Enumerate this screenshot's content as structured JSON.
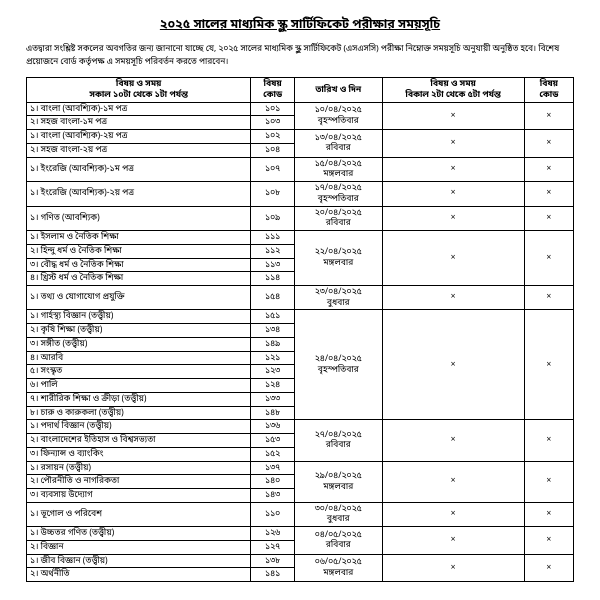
{
  "title": "২০২৫ সালের মাধ্যমিক স্কুল সার্টিফিকেট পরীক্ষার সময়সূচি",
  "intro": "এতদ্বারা সংশ্লিষ্ট সকলের অবগতির জন্য জানানো যাচ্ছে যে, ২০২৫ সালের মাধ্যমিক স্কুল সার্টিফিকেট (এসএসসি) পরীক্ষা নিম্নোক্ত সময়সূচি অনুযায়ী অনুষ্ঠিত হবে। বিশেষ প্রয়োজনে বোর্ড কর্তৃপক্ষ এ সময়সূচি পরিবর্তন করতে পারবেন।",
  "headers": {
    "subject_time": "বিষয় ও সময়",
    "morning": "সকাল ১০টা থেকে ১টা পর্যন্ত",
    "code": "বিষয়\nকোড",
    "date": "তারিখ ও দিন",
    "subject_time2": "বিষয় ও সময়",
    "afternoon": "বিকাল ২টা থেকে ৫টা পর্যন্ত",
    "code2": "বিষয়\nকোড"
  },
  "rows": [
    {
      "subs": [
        "১। বাংলা (আবশ্যিক)-১ম পত্র",
        "২। সহজ বাংলা-১ম পত্র"
      ],
      "codes": [
        "১০১",
        "১০৩"
      ],
      "date": "১০/০৪/২০২৫\nবৃহস্পতিবার",
      "aft": "×",
      "ac": "×"
    },
    {
      "subs": [
        "১। বাংলা (আবশ্যিক)-২য় পত্র",
        "২। সহজ বাংলা-২য় পত্র"
      ],
      "codes": [
        "১০২",
        "১০৪"
      ],
      "date": "১৩/০৪/২০২৫\nরবিবার",
      "aft": "×",
      "ac": "×"
    },
    {
      "subs": [
        "১। ইংরেজি (আবশ্যিক)-১ম পত্র"
      ],
      "codes": [
        "১০৭"
      ],
      "date": "১৫/০৪/২০২৫\nমঙ্গলবার",
      "aft": "×",
      "ac": "×"
    },
    {
      "subs": [
        "১। ইংরেজি (আবশ্যিক)-২য় পত্র"
      ],
      "codes": [
        "১০৮"
      ],
      "date": "১৭/০৪/২০২৫\nবৃহস্পতিবার",
      "aft": "×",
      "ac": "×"
    },
    {
      "subs": [
        "১। গণিত (আবশ্যিক)"
      ],
      "codes": [
        "১০৯"
      ],
      "date": "২০/০৪/২০২৫\nরবিবার",
      "aft": "×",
      "ac": "×"
    },
    {
      "subs": [
        "১। ইসলাম ও নৈতিক শিক্ষা",
        "২। হিন্দু ধর্ম ও নৈতিক শিক্ষা",
        "৩। বৌদ্ধ ধর্ম ও নৈতিক শিক্ষা",
        "৪। খ্রিস্ট ধর্ম ও নৈতিক শিক্ষা"
      ],
      "codes": [
        "১১১",
        "১১২",
        "১১৩",
        "১১৪"
      ],
      "date": "২২/০৪/২০২৫\nমঙ্গলবার",
      "aft": "×",
      "ac": "×"
    },
    {
      "subs": [
        "১। তথ্য ও যোগাযোগ প্রযুক্তি"
      ],
      "codes": [
        "১৫৪"
      ],
      "date": "২৩/০৪/২০২৫\nবুধবার",
      "aft": "×",
      "ac": "×"
    },
    {
      "subs": [
        "১। গার্হস্থ্য বিজ্ঞান (তত্ত্বীয়)",
        "২। কৃষি শিক্ষা (তত্ত্বীয়)",
        "৩। সঙ্গীত (তত্ত্বীয়)",
        "৪। আরবি",
        "৫। সংস্কৃত",
        "৬। পালি",
        "৭। শারীরিক শিক্ষা ও ক্রীড়া (তত্ত্বীয়)",
        "৮। চারু ও কারুকলা (তত্ত্বীয়)"
      ],
      "codes": [
        "১৫১",
        "১৩৪",
        "১৪৯",
        "১২১",
        "১২৩",
        "১২৪",
        "১৩৩",
        "১৪৮"
      ],
      "date": "২৪/০৪/২০২৫\nবৃহস্পতিবার",
      "aft": "×",
      "ac": "×"
    },
    {
      "subs": [
        "১। পদার্থ বিজ্ঞান (তত্ত্বীয়)",
        "২। বাংলাদেশের ইতিহাস ও বিশ্বসভ্যতা",
        "৩। ফিন্যান্স ও ব্যাংকিং"
      ],
      "codes": [
        "১৩৬",
        "১৫৩",
        "১৫২"
      ],
      "date": "২৭/০৪/২০২৫\nরবিবার",
      "aft": "×",
      "ac": "×"
    },
    {
      "subs": [
        "১। রসায়ন (তত্ত্বীয়)",
        "২। পৌরনীতি ও নাগরিকতা",
        "৩। ব্যবসায় উদ্যোগ"
      ],
      "codes": [
        "১৩৭",
        "১৪০",
        "১৪৩"
      ],
      "date": "২৯/০৪/২০২৫\nমঙ্গলবার",
      "aft": "×",
      "ac": "×"
    },
    {
      "subs": [
        "১। ভূগোল ও পরিবেশ"
      ],
      "codes": [
        "১১০"
      ],
      "date": "৩০/০৪/২০২৫\nবুধবার",
      "aft": "×",
      "ac": "×"
    },
    {
      "subs": [
        "১। উচ্চতর গণিত (তত্ত্বীয়)",
        "২। বিজ্ঞান"
      ],
      "codes": [
        "১২৬",
        "১২৭"
      ],
      "date": "০৪/০৫/২০২৫\nরবিবার",
      "aft": "×",
      "ac": "×"
    },
    {
      "subs": [
        "১। জীব বিজ্ঞান (তত্ত্বীয়)",
        "২। অর্থনীতি"
      ],
      "codes": [
        "১৩৮",
        "১৪১"
      ],
      "date": "০৬/০৫/২০২৫\nমঙ্গলবার",
      "aft": "×",
      "ac": "×"
    }
  ]
}
